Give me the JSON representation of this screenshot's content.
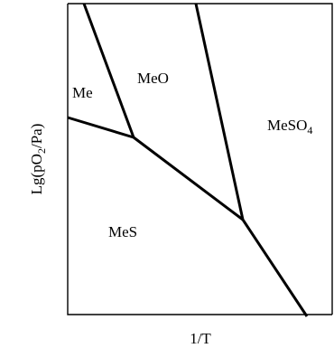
{
  "diagram": {
    "x_axis_label": "1/T",
    "y_axis_label_main": "Lg(pO",
    "y_axis_label_sub": "2",
    "y_axis_label_tail": "/Pa)",
    "regions": {
      "me": "Me",
      "meo": "MeO",
      "mes": "MeS",
      "meso4_main": "MeSO",
      "meso4_sub": "4"
    }
  }
}
